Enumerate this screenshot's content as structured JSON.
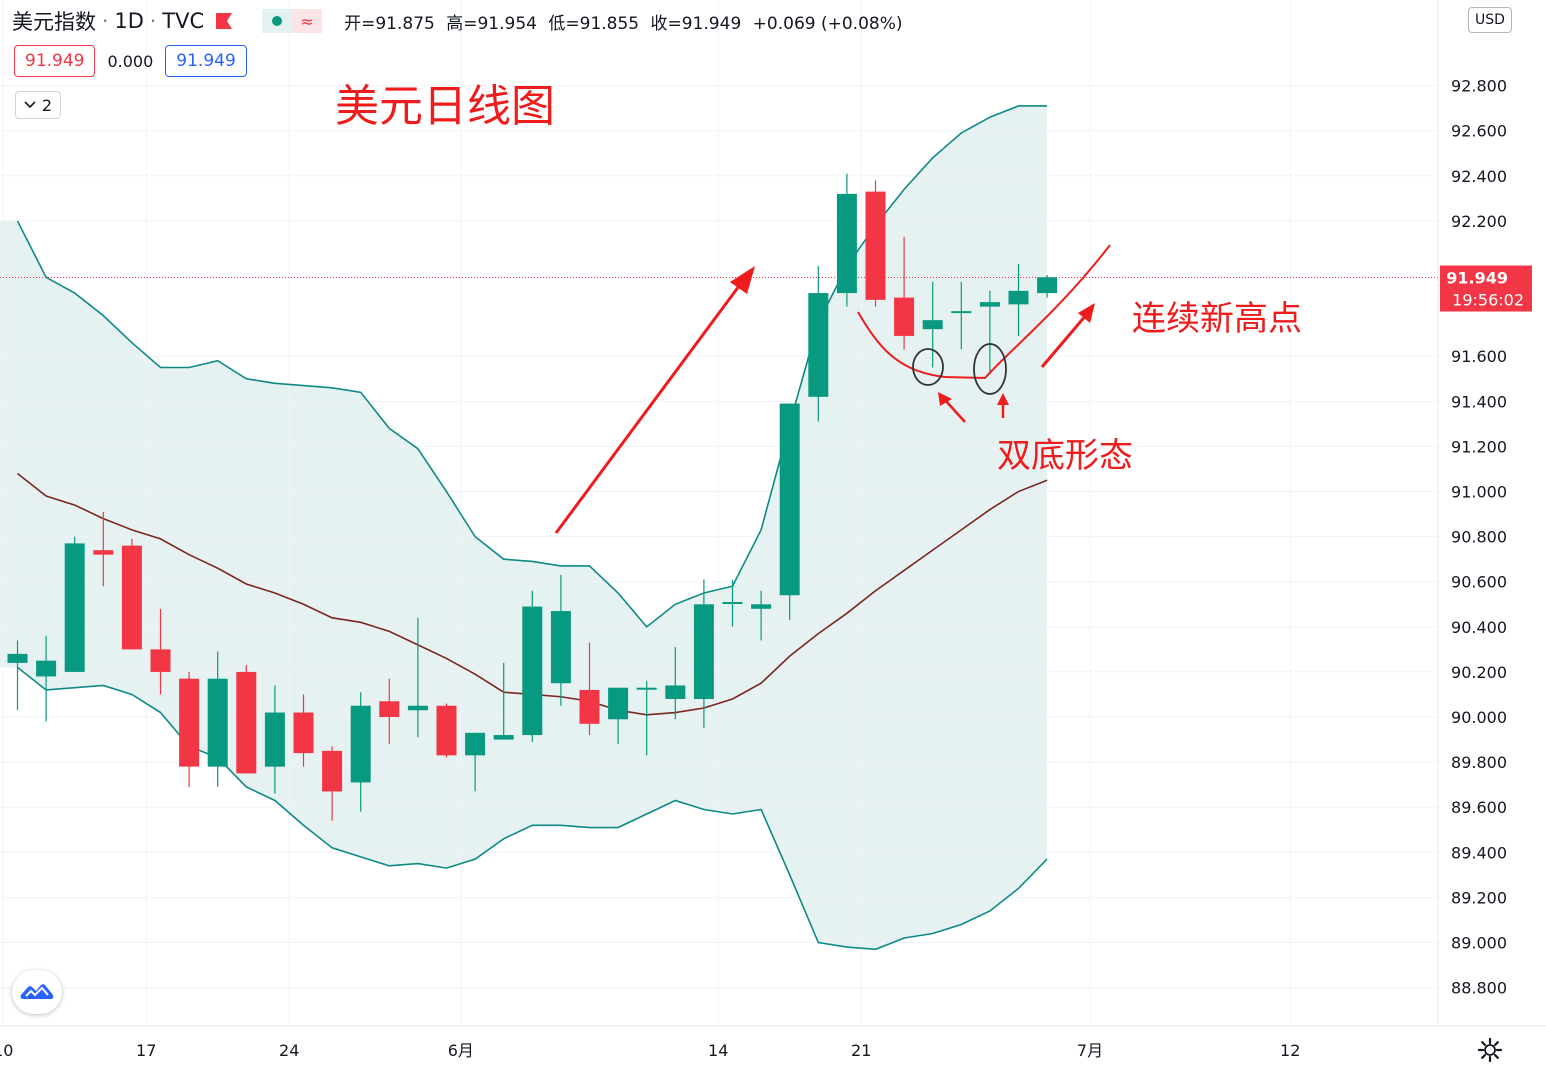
{
  "header": {
    "symbol": "美元指数",
    "interval": "1D",
    "source": "TVC",
    "ohlc": {
      "open_label": "开=91.875",
      "high_label": "高=91.954",
      "low_label": "低=91.855",
      "close_label": "收=91.949",
      "change": "+0.069 (+0.08%)"
    }
  },
  "price_boxes": {
    "last": "91.949",
    "spread": "0.000",
    "ask": "91.949"
  },
  "indicator_count": "2",
  "currency": "USD",
  "colors": {
    "up": "#089981",
    "down": "#f23645",
    "band": "#0d8a85",
    "band_fill": "#e6f2f1",
    "basis": "#7a2623",
    "annot": "#ee1c1c"
  },
  "annotations": {
    "title": "美元日线图",
    "new_highs": "连续新高点",
    "double_bottom": "双底形态"
  },
  "price_label": {
    "value": "91.949",
    "countdown": "19:56:02"
  },
  "chart_data": {
    "type": "candlestick",
    "title": "美元日线图",
    "x_tick_labels": [
      {
        "label": "10",
        "index": -0.5
      },
      {
        "label": "17",
        "index": 4.5
      },
      {
        "label": "24",
        "index": 9.5
      },
      {
        "label": "6月",
        "index": 15.5
      },
      {
        "label": "14",
        "index": 24.5
      },
      {
        "label": "21",
        "index": 29.5
      },
      {
        "label": "7月",
        "index": 37.5
      },
      {
        "label": "12",
        "index": 44.5
      }
    ],
    "y_ticks": [
      88.8,
      89.0,
      89.2,
      89.4,
      89.6,
      89.8,
      90.0,
      90.2,
      90.4,
      90.6,
      90.8,
      91.0,
      91.2,
      91.4,
      91.6,
      92.2,
      92.4,
      92.6,
      92.8
    ],
    "ylim": [
      88.62,
      93.06
    ],
    "last_price": 91.949,
    "candles": [
      {
        "o": 90.24,
        "h": 90.34,
        "l": 90.03,
        "c": 90.28
      },
      {
        "o": 90.18,
        "h": 90.36,
        "l": 89.98,
        "c": 90.25
      },
      {
        "o": 90.2,
        "h": 90.8,
        "l": 90.2,
        "c": 90.77
      },
      {
        "o": 90.74,
        "h": 90.91,
        "l": 90.58,
        "c": 90.72
      },
      {
        "o": 90.76,
        "h": 90.79,
        "l": 90.3,
        "c": 90.3
      },
      {
        "o": 90.3,
        "h": 90.48,
        "l": 90.1,
        "c": 90.2
      },
      {
        "o": 90.17,
        "h": 90.2,
        "l": 89.69,
        "c": 89.78
      },
      {
        "o": 89.78,
        "h": 90.29,
        "l": 89.69,
        "c": 90.17
      },
      {
        "o": 90.2,
        "h": 90.23,
        "l": 89.75,
        "c": 89.75
      },
      {
        "o": 89.78,
        "h": 90.14,
        "l": 89.66,
        "c": 90.02
      },
      {
        "o": 90.02,
        "h": 90.1,
        "l": 89.78,
        "c": 89.84
      },
      {
        "o": 89.85,
        "h": 89.87,
        "l": 89.54,
        "c": 89.67
      },
      {
        "o": 89.71,
        "h": 90.11,
        "l": 89.58,
        "c": 90.05
      },
      {
        "o": 90.07,
        "h": 90.17,
        "l": 89.88,
        "c": 90.0
      },
      {
        "o": 90.03,
        "h": 90.44,
        "l": 89.91,
        "c": 90.05
      },
      {
        "o": 90.05,
        "h": 90.06,
        "l": 89.82,
        "c": 89.83
      },
      {
        "o": 89.83,
        "h": 89.93,
        "l": 89.67,
        "c": 89.93
      },
      {
        "o": 89.9,
        "h": 90.24,
        "l": 89.9,
        "c": 89.92
      },
      {
        "o": 89.92,
        "h": 90.56,
        "l": 89.89,
        "c": 90.49
      },
      {
        "o": 90.15,
        "h": 90.63,
        "l": 90.05,
        "c": 90.47
      },
      {
        "o": 90.12,
        "h": 90.33,
        "l": 89.92,
        "c": 89.97
      },
      {
        "o": 89.99,
        "h": 90.12,
        "l": 89.88,
        "c": 90.13
      },
      {
        "o": 90.13,
        "h": 90.16,
        "l": 89.83,
        "c": 90.13
      },
      {
        "o": 90.08,
        "h": 90.31,
        "l": 89.99,
        "c": 90.14
      },
      {
        "o": 90.08,
        "h": 90.61,
        "l": 89.95,
        "c": 90.5
      },
      {
        "o": 90.51,
        "h": 90.61,
        "l": 90.4,
        "c": 90.51
      },
      {
        "o": 90.48,
        "h": 90.56,
        "l": 90.34,
        "c": 90.5
      },
      {
        "o": 90.54,
        "h": 91.39,
        "l": 90.43,
        "c": 91.39
      },
      {
        "o": 91.42,
        "h": 92.0,
        "l": 91.31,
        "c": 91.88
      },
      {
        "o": 91.88,
        "h": 92.41,
        "l": 91.82,
        "c": 92.32
      },
      {
        "o": 92.33,
        "h": 92.38,
        "l": 91.82,
        "c": 91.85
      },
      {
        "o": 91.86,
        "h": 92.13,
        "l": 91.63,
        "c": 91.69
      },
      {
        "o": 91.72,
        "h": 91.93,
        "l": 91.55,
        "c": 91.76
      },
      {
        "o": 91.8,
        "h": 91.93,
        "l": 91.63,
        "c": 91.8
      },
      {
        "o": 91.82,
        "h": 91.89,
        "l": 91.52,
        "c": 91.84
      },
      {
        "o": 91.83,
        "h": 92.01,
        "l": 91.69,
        "c": 91.89
      },
      {
        "o": 91.88,
        "h": 91.96,
        "l": 91.86,
        "c": 91.95
      }
    ],
    "bollinger": {
      "upper": [
        92.2,
        91.95,
        91.88,
        91.78,
        91.66,
        91.55,
        91.55,
        91.58,
        91.5,
        91.48,
        91.47,
        91.46,
        91.44,
        91.28,
        91.19,
        91.0,
        90.8,
        90.7,
        90.69,
        90.67,
        90.67,
        90.55,
        90.4,
        90.5,
        90.55,
        90.58,
        90.83,
        91.3,
        91.75,
        92.0,
        92.18,
        92.34,
        92.48,
        92.59,
        92.66,
        92.71,
        92.71
      ],
      "basis": [
        91.08,
        90.98,
        90.94,
        90.88,
        90.83,
        90.79,
        90.72,
        90.66,
        90.59,
        90.55,
        90.5,
        90.44,
        90.42,
        90.38,
        90.32,
        90.26,
        90.19,
        90.11,
        90.1,
        90.09,
        90.07,
        90.03,
        90.01,
        90.02,
        90.04,
        90.08,
        90.15,
        90.27,
        90.37,
        90.46,
        90.56,
        90.65,
        90.74,
        90.83,
        90.92,
        91.0,
        91.05
      ],
      "lower": [
        90.22,
        90.12,
        90.13,
        90.14,
        90.1,
        90.02,
        89.87,
        89.82,
        89.69,
        89.63,
        89.52,
        89.42,
        89.38,
        89.34,
        89.35,
        89.33,
        89.37,
        89.46,
        89.52,
        89.52,
        89.51,
        89.51,
        89.57,
        89.63,
        89.59,
        89.57,
        89.59,
        89.3,
        89.0,
        88.98,
        88.97,
        89.02,
        89.04,
        89.08,
        89.14,
        89.24,
        89.37
      ]
    }
  }
}
